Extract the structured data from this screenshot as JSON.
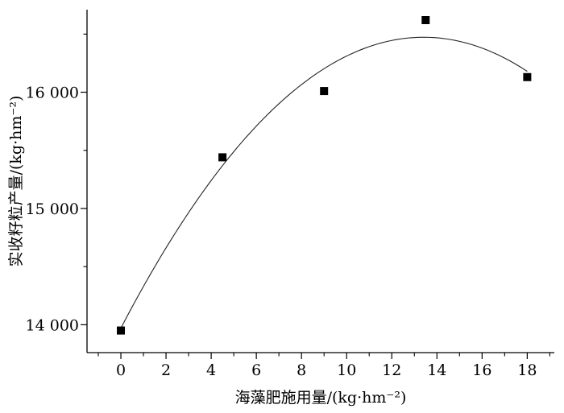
{
  "chart_data": {
    "type": "scatter",
    "title": "",
    "xlabel": "海藻肥施用量/(kg·hm⁻²)",
    "ylabel": "实收籽粒产量/(kg·hm⁻²)",
    "xlim": [
      -1.5,
      19.2
    ],
    "ylim": [
      13760,
      16710
    ],
    "xticks": [
      0,
      2,
      4,
      6,
      8,
      10,
      12,
      14,
      16,
      18
    ],
    "xtick_labels": [
      "0",
      "2",
      "4",
      "6",
      "8",
      "10",
      "12",
      "14",
      "16",
      "18"
    ],
    "yticks": [
      14000,
      15000,
      16000
    ],
    "ytick_labels": [
      "14 000",
      "15 000",
      "16 000"
    ],
    "grid": false,
    "series": [
      {
        "type": "scatter",
        "marker": "square",
        "x": [
          0,
          4.5,
          9,
          13.5,
          18
        ],
        "y": [
          13950,
          15440,
          16010,
          16620,
          16130
        ]
      },
      {
        "type": "line",
        "fit": "quadratic",
        "coefficients": [
          13970,
          373.3,
          -13.92
        ],
        "x_range": [
          0,
          18
        ]
      }
    ]
  }
}
